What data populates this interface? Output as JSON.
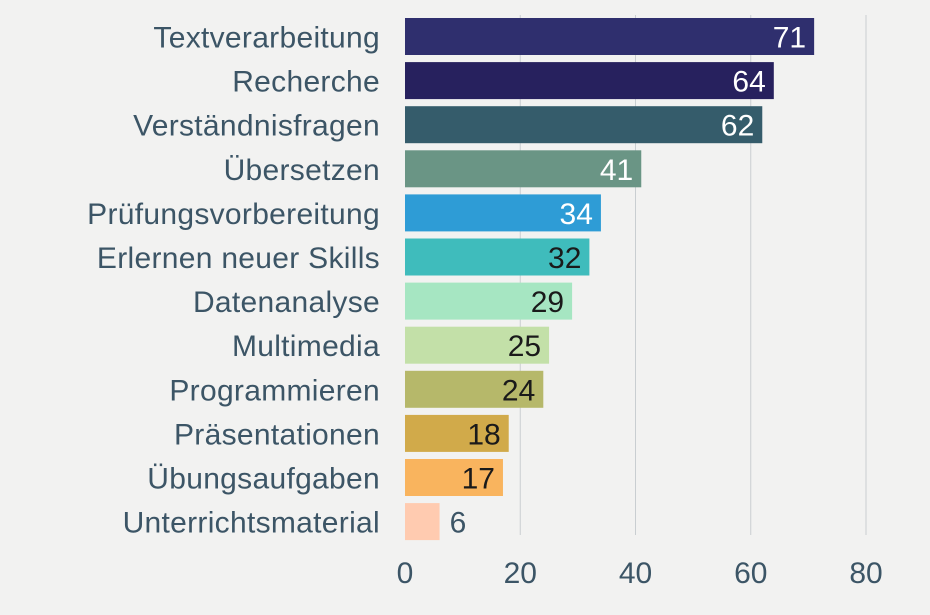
{
  "chart_data": {
    "type": "bar",
    "orientation": "horizontal",
    "title": "",
    "xlabel": "",
    "ylabel": "",
    "categories": [
      "Textverarbeitung",
      "Recherche",
      "Verständnisfragen",
      "Übersetzen",
      "Prüfungsvorbereitung",
      "Erlernen neuer Skills",
      "Datenanalyse",
      "Multimedia",
      "Programmieren",
      "Präsentationen",
      "Übungsaufgaben",
      "Unterrichtsmaterial"
    ],
    "values": [
      71,
      64,
      62,
      41,
      34,
      32,
      29,
      25,
      24,
      18,
      17,
      6
    ],
    "value_labels": [
      "71",
      "64",
      "62",
      "41",
      "34",
      "32",
      "29",
      "25",
      "24",
      "18",
      "17",
      "6"
    ],
    "xlim": [
      0,
      80
    ],
    "xticks": [
      0,
      20,
      40,
      60,
      80
    ],
    "xtick_labels": [
      "0",
      "20",
      "40",
      "60",
      "80"
    ],
    "grid": "vertical",
    "legend": "none",
    "colors": [
      "#2f2f6e",
      "#27215e",
      "#355c6b",
      "#6a9585",
      "#2e9cd6",
      "#3fbcbc",
      "#a6e6c2",
      "#c3e0a8",
      "#b6b86a",
      "#d1aa4a",
      "#f9b45e",
      "#ffcbb0"
    ],
    "value_label_colors": [
      "#ffffff",
      "#ffffff",
      "#ffffff",
      "#ffffff",
      "#ffffff",
      "#1a1a1a",
      "#1a1a1a",
      "#1a1a1a",
      "#1a1a1a",
      "#1a1a1a",
      "#1a1a1a",
      "#3c5566"
    ]
  }
}
